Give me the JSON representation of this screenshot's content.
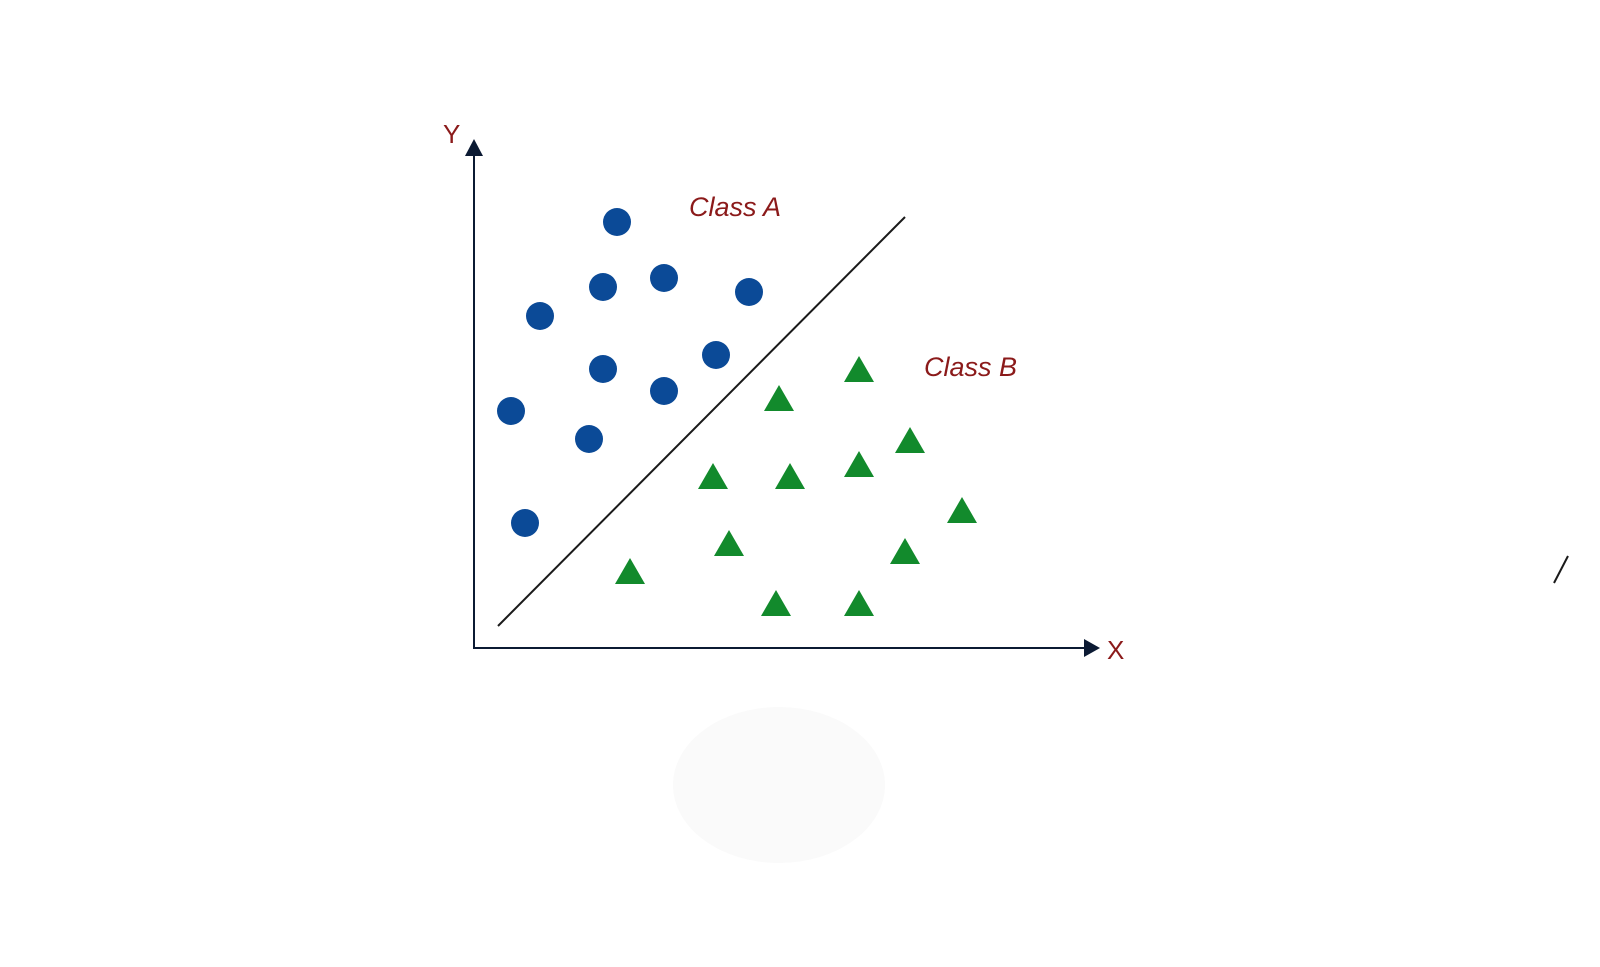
{
  "diagram": {
    "y_label": "Y",
    "x_label": "X",
    "class_a_label": "Class A",
    "class_b_label": "Class B"
  },
  "colors": {
    "label": "#8b1a1a",
    "axis": "#0b1a33",
    "class_a": "#0b4a97",
    "class_b": "#128a2c",
    "boundary": "#1a1a1a",
    "faint_ellipse": "#fafafa"
  }
}
